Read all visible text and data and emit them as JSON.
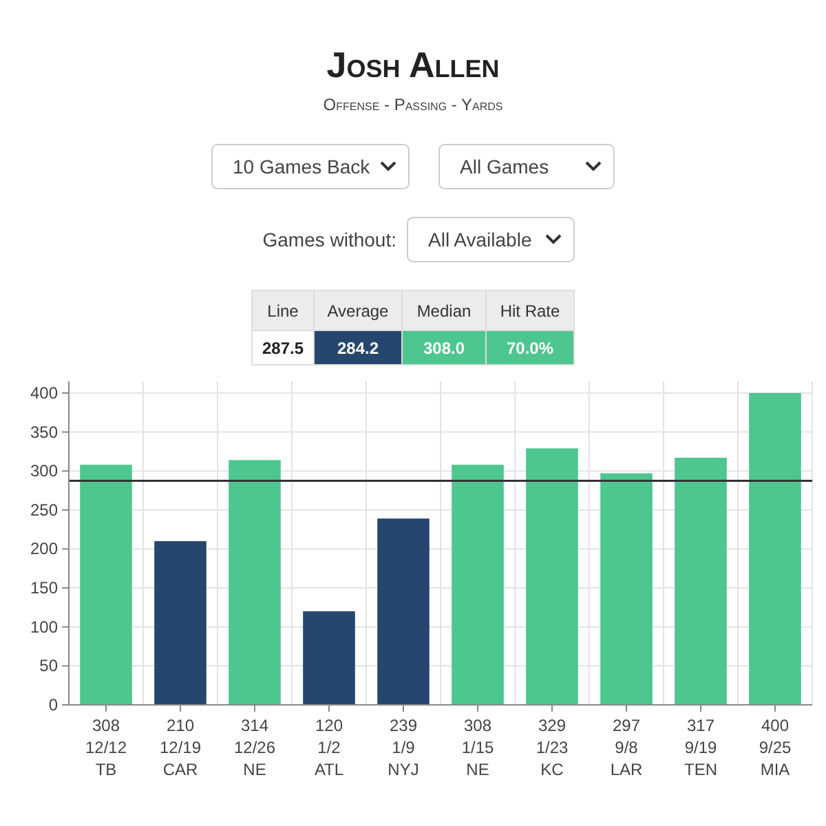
{
  "chart_data": {
    "type": "bar",
    "title": "Josh Allen",
    "subtitle": "Offense - Passing - Yards",
    "categories": [
      "12/12\nTB",
      "12/19\nCAR",
      "12/26\nNE",
      "1/2\nATL",
      "1/9\nNYJ",
      "1/15\nNE",
      "1/23\nKC",
      "9/8\nLAR",
      "9/19\nTEN",
      "9/25\nMIA"
    ],
    "values": [
      308,
      210,
      314,
      120,
      239,
      308,
      329,
      297,
      317,
      400
    ],
    "colors": [
      "#4dc68f",
      "#26476d",
      "#4dc68f",
      "#26476d",
      "#26476d",
      "#4dc68f",
      "#4dc68f",
      "#4dc68f",
      "#4dc68f",
      "#4dc68f"
    ],
    "data_labels": true,
    "ylim": [
      0,
      415
    ],
    "yticks": [
      0,
      50,
      100,
      150,
      200,
      250,
      300,
      350,
      400
    ],
    "grid": true,
    "ref_lines": [
      {
        "axis": "y",
        "value": 287.5,
        "color": "#333333"
      }
    ],
    "annotations": [
      "10 Games Back",
      "All Games",
      "Games without:",
      "All Available",
      "Line",
      "Average",
      "Median",
      "Hit Rate",
      "287.5",
      "284.2",
      "308.0",
      "70.0%"
    ]
  }
}
